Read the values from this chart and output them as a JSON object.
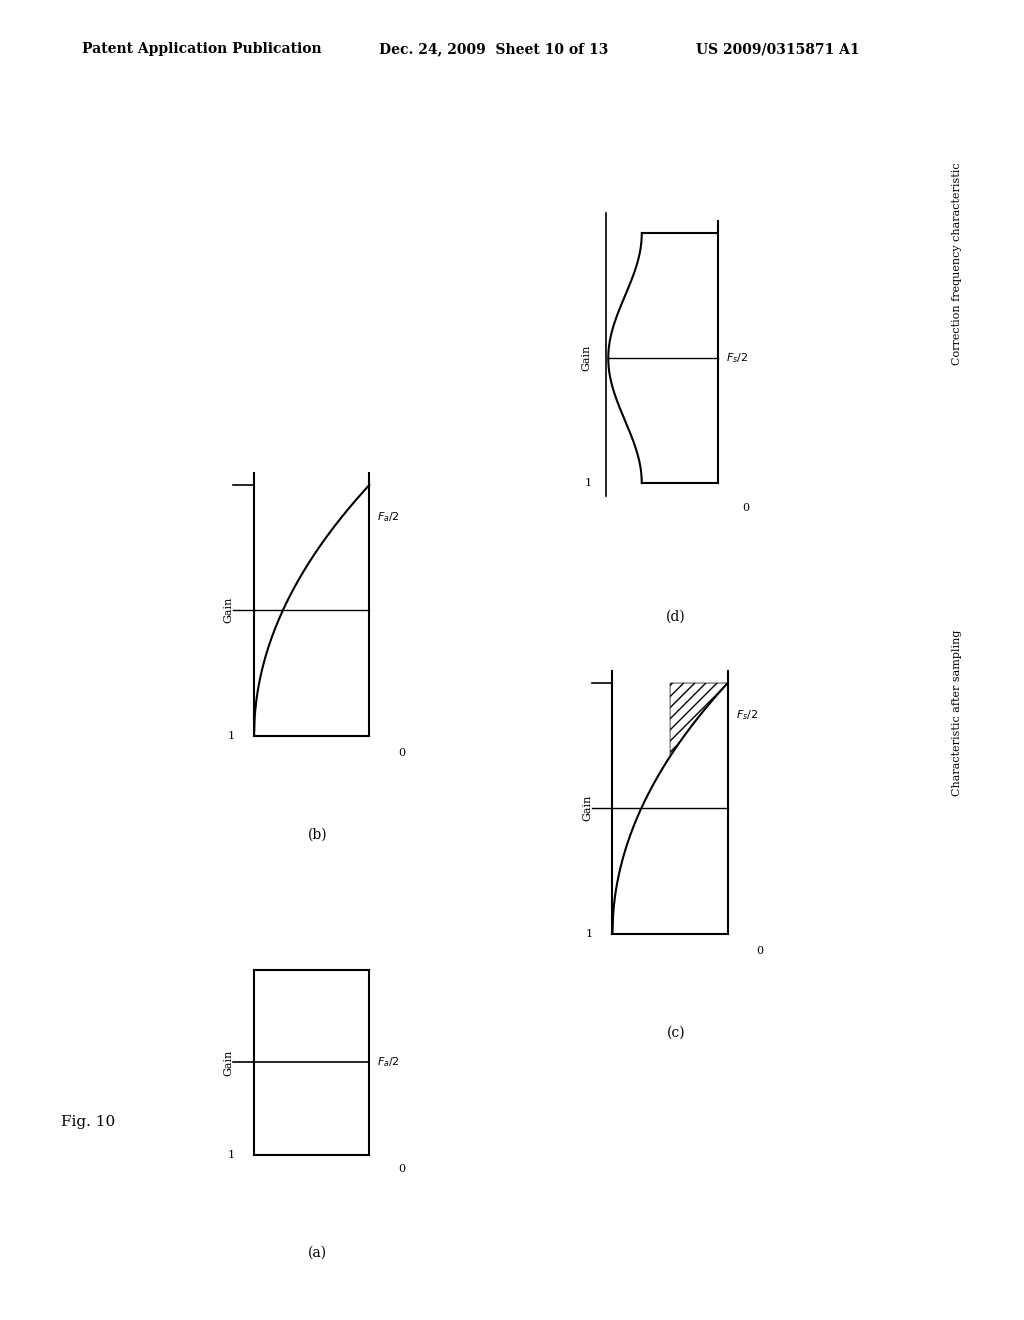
{
  "header_left": "Patent Application Publication",
  "header_mid": "Dec. 24, 2009  Sheet 10 of 13",
  "header_right": "US 2009/0315871 A1",
  "fig_label": "Fig. 10",
  "subplot_labels": [
    "(a)",
    "(b)",
    "(c)",
    "(d)"
  ],
  "right_label_d": "Correction frequency characteristic",
  "right_label_c": "Characteristic after sampling",
  "background_color": "#ffffff",
  "line_color": "#000000"
}
